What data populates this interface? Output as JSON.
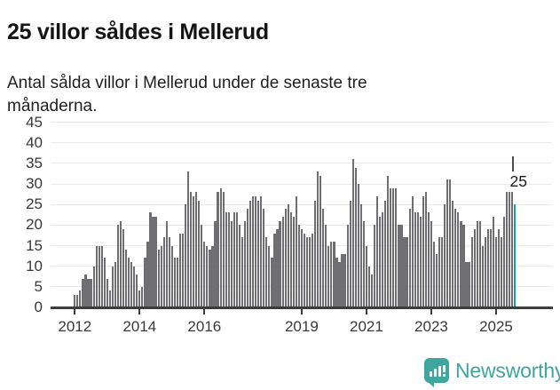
{
  "header": {
    "title": "25 villor såldes i Mellerud",
    "subtitle": "Antal sålda villor i Mellerud under de senaste tre månaderna."
  },
  "chart_data": {
    "type": "bar",
    "title": "25 villor såldes i Mellerud",
    "subtitle": "Antal sålda villor i Mellerud under de senaste tre månaderna.",
    "frequency": "monthly",
    "start_month": "2012-01",
    "end_month": "2025-08",
    "values": [
      3,
      3,
      4,
      7,
      8,
      7,
      7,
      10,
      15,
      15,
      15,
      12,
      7,
      4,
      10,
      11,
      20,
      21,
      19,
      14,
      12,
      11,
      10,
      8,
      4,
      5,
      12,
      16,
      23,
      22,
      22,
      14,
      15,
      17,
      21,
      17,
      15,
      12,
      12,
      18,
      18,
      25,
      33,
      28,
      27,
      28,
      26,
      20,
      16,
      15,
      14,
      15,
      21,
      28,
      29,
      28,
      23,
      23,
      21,
      23,
      23,
      20,
      17,
      21,
      24,
      26,
      27,
      27,
      26,
      27,
      24,
      17,
      15,
      12,
      18,
      19,
      21,
      22,
      24,
      25,
      23,
      22,
      27,
      20,
      19,
      18,
      17,
      17,
      18,
      26,
      33,
      32,
      24,
      20,
      15,
      16,
      16,
      12,
      11,
      13,
      13,
      20,
      26,
      36,
      34,
      30,
      25,
      21,
      15,
      10,
      8,
      20,
      27,
      22,
      23,
      26,
      32,
      29,
      29,
      29,
      20,
      20,
      17,
      17,
      24,
      27,
      23,
      23,
      22,
      27,
      28,
      23,
      21,
      16,
      13,
      17,
      17,
      25,
      31,
      31,
      26,
      24,
      23,
      21,
      20,
      11,
      11,
      17,
      19,
      21,
      21,
      15,
      17,
      19,
      19,
      22,
      17,
      19,
      17,
      22,
      28,
      28,
      28,
      25
    ],
    "ylim": [
      0,
      45
    ],
    "y_ticks": [
      0,
      5,
      10,
      15,
      20,
      25,
      30,
      35,
      40,
      45
    ],
    "x_tick_years": [
      2012,
      2014,
      2016,
      2019,
      2021,
      2023,
      2025
    ],
    "x_tick_labels": [
      "2012",
      "2014",
      "2016",
      "2019",
      "2021",
      "2023",
      "2025"
    ],
    "grid": true,
    "legend": "none",
    "bar_color": "#6e6e73",
    "highlight_color": "#13a3a3",
    "highlight_index": 163,
    "annotation": {
      "text": "25",
      "index": 163,
      "value": 25
    }
  },
  "footer": {
    "brand": "Newsworthy",
    "brand_color": "#3ea69e",
    "logo_icon": "bar-chart-speech-bubble"
  }
}
